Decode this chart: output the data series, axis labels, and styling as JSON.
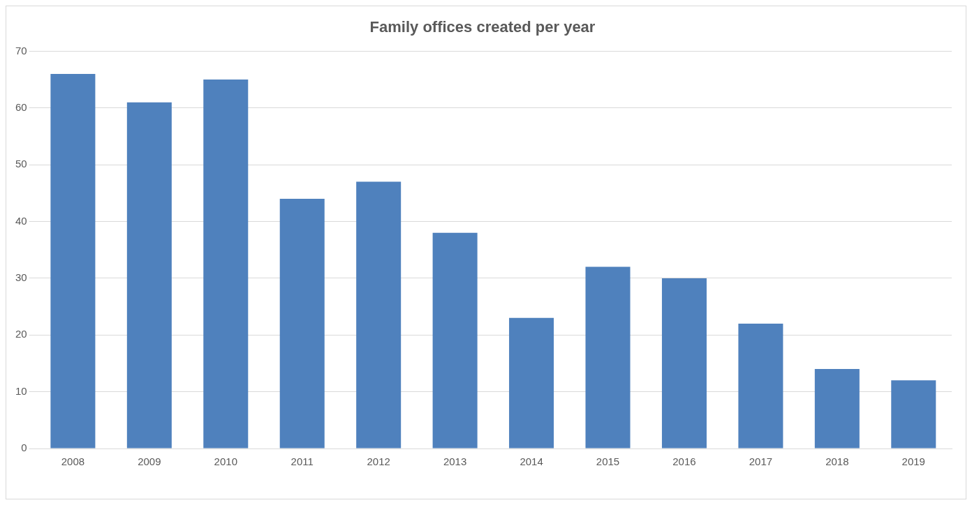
{
  "chart_data": {
    "type": "bar",
    "title": "Family offices created per year",
    "categories": [
      "2008",
      "2009",
      "2010",
      "2011",
      "2012",
      "2013",
      "2014",
      "2015",
      "2016",
      "2017",
      "2018",
      "2019"
    ],
    "values": [
      66,
      61,
      65,
      44,
      47,
      38,
      23,
      32,
      30,
      22,
      14,
      12
    ],
    "color": "#4f81bd",
    "ylim": [
      0,
      70
    ],
    "yticks": [
      0,
      10,
      20,
      30,
      40,
      50,
      60,
      70
    ],
    "grid": "y",
    "legend": false
  }
}
